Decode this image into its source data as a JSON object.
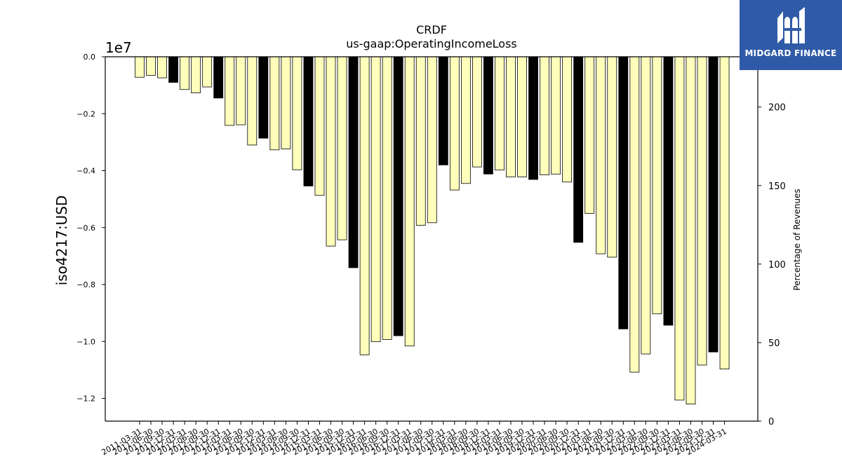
{
  "brand": {
    "name": "MIDGARD FINANCE",
    "bg_color": "#2f5aa8"
  },
  "chart_data": {
    "type": "bar",
    "title": "CRDF",
    "subtitle": "us-gaap:OperatingIncomeLoss",
    "ylabel": "iso4217:USD",
    "y_scale_label": "1e7",
    "y2label": "Percentage of Revenues",
    "ylim": [
      -12.8,
      0.0
    ],
    "y_unit_multiplier": 10000000,
    "y_ticks": [
      "0.0",
      "−0.2",
      "−0.4",
      "−0.6",
      "−0.8",
      "−1.0",
      "−1.2"
    ],
    "y_tick_values": [
      0,
      -2,
      -4,
      -6,
      -8,
      -10,
      -12
    ],
    "y2lim": [
      0,
      232
    ],
    "y2_ticks": [
      "0",
      "50",
      "100",
      "150",
      "200"
    ],
    "y2_tick_values": [
      0,
      50,
      100,
      150,
      200
    ],
    "colors": {
      "quarter": "#ffffbb",
      "annual": "#000000",
      "edge": "#000000"
    },
    "categories": [
      "2011-03-31",
      "2011-06-30",
      "2011-09-30",
      "2011-12-31",
      "2012-03-31",
      "2012-06-30",
      "2012-09-30",
      "2012-12-31",
      "2013-03-31",
      "2013-06-30",
      "2013-09-30",
      "2013-12-31",
      "2014-03-31",
      "2014-06-30",
      "2014-09-30",
      "2014-12-31",
      "2015-03-31",
      "2015-06-30",
      "2015-09-30",
      "2015-12-31",
      "2016-03-31",
      "2016-06-30",
      "2016-09-30",
      "2016-12-31",
      "2017-03-31",
      "2017-06-30",
      "2017-09-30",
      "2017-12-31",
      "2018-03-31",
      "2018-06-30",
      "2018-09-30",
      "2018-12-31",
      "2019-03-31",
      "2019-06-30",
      "2019-09-30",
      "2019-12-31",
      "2020-03-31",
      "2020-06-30",
      "2020-09-30",
      "2020-12-31",
      "2021-03-31",
      "2021-06-30",
      "2021-09-30",
      "2021-12-31",
      "2022-03-31",
      "2022-06-30",
      "2022-09-30",
      "2022-12-31",
      "2023-03-31",
      "2023-06-30",
      "2023-09-30",
      "2023-12-31",
      "2024-03-31"
    ],
    "values_1e6": [
      -0.72,
      -0.65,
      -0.74,
      -0.9,
      -1.15,
      -1.27,
      -1.06,
      -1.45,
      -2.41,
      -2.39,
      -3.1,
      -2.86,
      -3.27,
      -3.24,
      -3.97,
      -4.54,
      -4.87,
      -6.65,
      -6.43,
      -7.41,
      -10.47,
      -10.01,
      -9.93,
      -9.8,
      -10.16,
      -5.92,
      -5.83,
      -3.8,
      -4.68,
      -4.45,
      -3.87,
      -4.12,
      -3.98,
      -4.22,
      -4.22,
      -4.31,
      -4.15,
      -4.12,
      -4.4,
      -6.52,
      -5.5,
      -6.92,
      -7.04,
      -9.56,
      -11.08,
      -10.44,
      -9.03,
      -9.43,
      -12.06,
      -12.2,
      -10.83,
      -10.37,
      -10.97
    ],
    "annual_flags": [
      false,
      false,
      false,
      true,
      false,
      false,
      false,
      true,
      false,
      false,
      false,
      true,
      false,
      false,
      false,
      true,
      false,
      false,
      false,
      true,
      false,
      false,
      false,
      true,
      false,
      false,
      false,
      true,
      false,
      false,
      false,
      true,
      false,
      false,
      false,
      true,
      false,
      false,
      false,
      true,
      false,
      false,
      false,
      true,
      false,
      false,
      false,
      true,
      false,
      false,
      false,
      true,
      false
    ],
    "grid": false,
    "legend": "none"
  }
}
